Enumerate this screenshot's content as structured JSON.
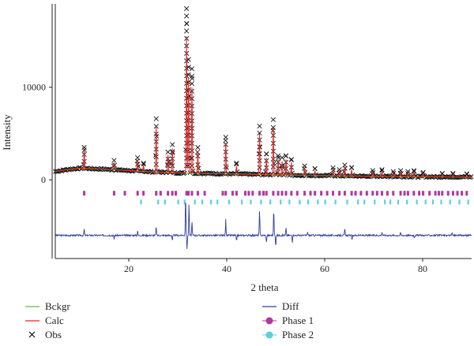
{
  "chart_data": {
    "type": "line",
    "title": "",
    "xlabel": "2 theta",
    "ylabel": "Intensity",
    "xlim": [
      5,
      90
    ],
    "ylim": [
      -8500,
      19000
    ],
    "x_ticks": [
      20,
      40,
      60,
      80
    ],
    "y_ticks": [
      0,
      10000
    ],
    "legend_position": "bottom",
    "colors": {
      "bckgr": "#5fbf3f",
      "calc": "#e02828",
      "obs": "#111111",
      "diff": "#2e3f9e",
      "phase1": "#b0399e",
      "phase2": "#5ccfe0"
    },
    "legend": [
      {
        "key": "bckgr",
        "label": "Bckgr",
        "marker": "line"
      },
      {
        "key": "calc",
        "label": "Calc",
        "marker": "line"
      },
      {
        "key": "obs",
        "label": "Obs",
        "marker": "x"
      },
      {
        "key": "diff",
        "label": "Diff",
        "marker": "line"
      },
      {
        "key": "phase1",
        "label": "Phase 1",
        "marker": "dot"
      },
      {
        "key": "phase2",
        "label": "Phase 2",
        "marker": "dot"
      }
    ],
    "series": [
      {
        "name": "Bckgr",
        "x": [
          5,
          8,
          10,
          15,
          20,
          25,
          30,
          35,
          40,
          50,
          60,
          70,
          80,
          90
        ],
        "y": [
          900,
          1150,
          1250,
          1150,
          1000,
          850,
          750,
          700,
          650,
          550,
          450,
          380,
          330,
          300
        ]
      },
      {
        "name": "Obs",
        "peaks": [
          {
            "x": 10.9,
            "y": 3500
          },
          {
            "x": 17.0,
            "y": 2100
          },
          {
            "x": 21.8,
            "y": 2400
          },
          {
            "x": 23.0,
            "y": 1800
          },
          {
            "x": 25.6,
            "y": 6600
          },
          {
            "x": 28.0,
            "y": 3000
          },
          {
            "x": 28.9,
            "y": 3800
          },
          {
            "x": 31.8,
            "y": 18500
          },
          {
            "x": 32.2,
            "y": 13000
          },
          {
            "x": 32.9,
            "y": 12000
          },
          {
            "x": 34.1,
            "y": 3500
          },
          {
            "x": 39.8,
            "y": 4600
          },
          {
            "x": 42.0,
            "y": 1800
          },
          {
            "x": 46.7,
            "y": 5800
          },
          {
            "x": 48.1,
            "y": 2800
          },
          {
            "x": 49.5,
            "y": 6500
          },
          {
            "x": 50.5,
            "y": 2600
          },
          {
            "x": 51.3,
            "y": 2400
          },
          {
            "x": 52.1,
            "y": 2600
          },
          {
            "x": 53.2,
            "y": 2200
          },
          {
            "x": 55.9,
            "y": 1500
          },
          {
            "x": 58.0,
            "y": 1200
          },
          {
            "x": 61.7,
            "y": 1300
          },
          {
            "x": 63.0,
            "y": 1100
          },
          {
            "x": 64.1,
            "y": 1600
          },
          {
            "x": 65.5,
            "y": 1300
          },
          {
            "x": 69.8,
            "y": 1000
          },
          {
            "x": 71.7,
            "y": 1100
          },
          {
            "x": 74.0,
            "y": 900
          },
          {
            "x": 75.5,
            "y": 1000
          },
          {
            "x": 77.0,
            "y": 900
          },
          {
            "x": 78.2,
            "y": 1000
          },
          {
            "x": 80.1,
            "y": 800
          },
          {
            "x": 84.0,
            "y": 700
          },
          {
            "x": 86.2,
            "y": 700
          },
          {
            "x": 89.0,
            "y": 650
          }
        ]
      },
      {
        "name": "Calc",
        "peaks": [
          {
            "x": 10.9,
            "y": 3200
          },
          {
            "x": 17.0,
            "y": 1900
          },
          {
            "x": 21.8,
            "y": 2200
          },
          {
            "x": 23.0,
            "y": 1600
          },
          {
            "x": 25.6,
            "y": 5800
          },
          {
            "x": 28.0,
            "y": 2700
          },
          {
            "x": 28.9,
            "y": 3400
          },
          {
            "x": 31.8,
            "y": 15500
          },
          {
            "x": 32.2,
            "y": 11000
          },
          {
            "x": 32.9,
            "y": 10000
          },
          {
            "x": 34.1,
            "y": 3100
          },
          {
            "x": 39.8,
            "y": 4000
          },
          {
            "x": 42.0,
            "y": 1500
          },
          {
            "x": 46.7,
            "y": 5000
          },
          {
            "x": 48.1,
            "y": 2400
          },
          {
            "x": 49.5,
            "y": 5600
          },
          {
            "x": 50.5,
            "y": 2200
          },
          {
            "x": 51.3,
            "y": 2000
          },
          {
            "x": 52.1,
            "y": 2200
          },
          {
            "x": 53.2,
            "y": 1900
          },
          {
            "x": 55.9,
            "y": 1300
          },
          {
            "x": 58.0,
            "y": 1000
          },
          {
            "x": 61.7,
            "y": 1100
          },
          {
            "x": 63.0,
            "y": 950
          },
          {
            "x": 64.1,
            "y": 1400
          },
          {
            "x": 65.5,
            "y": 1100
          },
          {
            "x": 69.8,
            "y": 850
          },
          {
            "x": 71.7,
            "y": 950
          },
          {
            "x": 74.0,
            "y": 750
          },
          {
            "x": 75.5,
            "y": 850
          },
          {
            "x": 77.0,
            "y": 750
          },
          {
            "x": 78.2,
            "y": 850
          },
          {
            "x": 80.1,
            "y": 650
          },
          {
            "x": 84.0,
            "y": 600
          },
          {
            "x": 86.2,
            "y": 600
          },
          {
            "x": 89.0,
            "y": 550
          }
        ]
      },
      {
        "name": "Diff",
        "baseline": -6000,
        "features": [
          {
            "x": 10.9,
            "y": -5300
          },
          {
            "x": 17.0,
            "y": -6400
          },
          {
            "x": 21.8,
            "y": -5500
          },
          {
            "x": 25.6,
            "y": -5000
          },
          {
            "x": 28.9,
            "y": -6600
          },
          {
            "x": 31.6,
            "y": -1500
          },
          {
            "x": 31.9,
            "y": -7500
          },
          {
            "x": 32.3,
            "y": -2500
          },
          {
            "x": 32.9,
            "y": -4500
          },
          {
            "x": 39.8,
            "y": -4300
          },
          {
            "x": 42.0,
            "y": -6700
          },
          {
            "x": 46.7,
            "y": -3200
          },
          {
            "x": 48.1,
            "y": -6800
          },
          {
            "x": 49.6,
            "y": -3100
          },
          {
            "x": 50.0,
            "y": -7200
          },
          {
            "x": 52.1,
            "y": -5200
          },
          {
            "x": 53.4,
            "y": -6700
          },
          {
            "x": 56.5,
            "y": -5600
          },
          {
            "x": 64.1,
            "y": -5300
          },
          {
            "x": 65.6,
            "y": -6500
          },
          {
            "x": 71.7,
            "y": -5600
          },
          {
            "x": 75.5,
            "y": -5700
          },
          {
            "x": 78.3,
            "y": -6200
          },
          {
            "x": 86.0,
            "y": -5700
          }
        ]
      },
      {
        "name": "Phase 1",
        "y_level": -1450,
        "x": [
          10.9,
          17.0,
          19.2,
          21.8,
          23.0,
          25.6,
          26.5,
          28.0,
          28.9,
          29.6,
          31.8,
          32.2,
          32.9,
          34.1,
          35.5,
          39.2,
          39.8,
          41.2,
          42.0,
          43.8,
          44.5,
          45.3,
          46.7,
          47.5,
          48.1,
          49.5,
          50.5,
          51.3,
          52.1,
          53.2,
          54.4,
          55.9,
          57.1,
          58.0,
          59.3,
          60.5,
          61.7,
          63.0,
          64.1,
          65.5,
          66.3,
          67.4,
          68.6,
          69.8,
          70.7,
          71.7,
          72.8,
          74.0,
          75.5,
          76.3,
          77.0,
          78.2,
          79.3,
          80.1,
          81.4,
          82.6,
          83.3,
          84.0,
          85.2,
          86.2,
          87.1,
          88.0,
          89.0
        ]
      },
      {
        "name": "Phase 2",
        "y_level": -2400,
        "x": [
          22.5,
          26.0,
          27.4,
          30.1,
          31.4,
          33.5,
          35.0,
          36.8,
          38.1,
          40.5,
          43.1,
          44.9,
          47.0,
          48.9,
          51.0,
          52.8,
          54.9,
          56.6,
          58.6,
          60.1,
          62.2,
          64.6,
          66.8,
          68.1,
          70.2,
          72.3,
          73.4,
          75.0,
          76.8,
          78.8,
          80.6,
          82.1,
          83.8,
          85.6,
          87.5,
          89.3
        ]
      }
    ]
  }
}
